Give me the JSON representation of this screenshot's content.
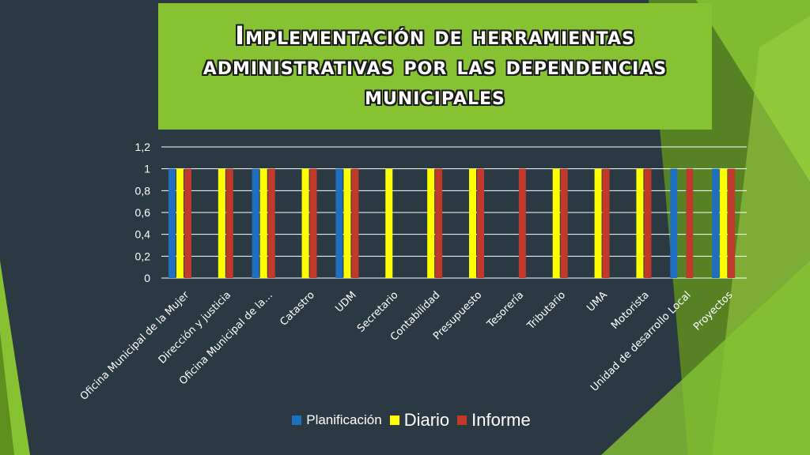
{
  "slide": {
    "title": "Implementación de herramientas administrativas por las dependencias municipales"
  },
  "colors": {
    "background": "#2b3a42",
    "title_box": "#86c232",
    "accent_green": "#86c232",
    "dark_green": "#5e8f1e"
  },
  "chart_data": {
    "type": "bar",
    "categories": [
      "Oficina Municipal de la Mujer",
      "Dirección y justicia",
      "Oficina Municipal de la…",
      "Catastro",
      "UDM",
      "Secretario",
      "Contabilidad",
      "Presupuesto",
      "Tesorería",
      "Tributario",
      "UMA",
      "Motorista",
      "Unidad de desarrollo Local",
      "Proyectos"
    ],
    "series": [
      {
        "name": "Planificación",
        "color": "#1f6fc0",
        "values": [
          1,
          0,
          1,
          0,
          1,
          0,
          0,
          0,
          0,
          0,
          0,
          0,
          1,
          1
        ]
      },
      {
        "name": "Diario",
        "color": "#ffff00",
        "values": [
          1,
          1,
          1,
          1,
          1,
          1,
          1,
          1,
          0,
          1,
          1,
          1,
          0,
          1
        ]
      },
      {
        "name": "Informe",
        "color": "#c0392b",
        "values": [
          1,
          1,
          1,
          1,
          1,
          0,
          1,
          1,
          1,
          1,
          1,
          1,
          1,
          1
        ]
      }
    ],
    "ylim": [
      0,
      1.2
    ],
    "y_ticks": [
      "0",
      "0,2",
      "0,4",
      "0,6",
      "0,8",
      "1",
      "1,2"
    ],
    "grid": true,
    "legend": "bottom",
    "xlabel": "",
    "ylabel": ""
  }
}
